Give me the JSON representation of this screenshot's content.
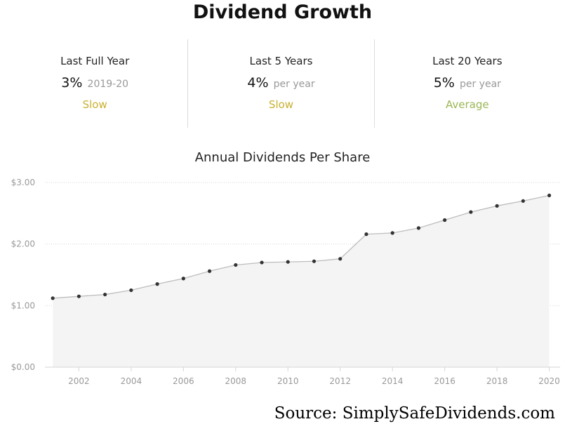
{
  "header": {
    "title": "Dividend Growth"
  },
  "metrics": [
    {
      "label": "Last Full Year",
      "value": "3%",
      "sub": "2019-20",
      "rating": "Slow"
    },
    {
      "label": "Last 5 Years",
      "value": "4%",
      "sub": "per year",
      "rating": "Slow"
    },
    {
      "label": "Last 20 Years",
      "value": "5%",
      "sub": "per year",
      "rating": "Average"
    }
  ],
  "colors": {
    "rating_slow": "#c9b031",
    "rating_average": "#9cb656",
    "line": "#bdbdbd",
    "area": "#f4f4f4",
    "point": "#333333",
    "grid": "#d6d6d6",
    "tick_label": "#999999"
  },
  "chart_data": {
    "type": "area",
    "title": "Annual Dividends Per Share",
    "xlabel": "",
    "ylabel": "",
    "x": [
      2001,
      2002,
      2003,
      2004,
      2005,
      2006,
      2007,
      2008,
      2009,
      2010,
      2011,
      2012,
      2013,
      2014,
      2015,
      2016,
      2017,
      2018,
      2019,
      2020
    ],
    "values": [
      1.12,
      1.15,
      1.18,
      1.25,
      1.35,
      1.44,
      1.56,
      1.66,
      1.7,
      1.71,
      1.72,
      1.76,
      2.16,
      2.18,
      2.26,
      2.39,
      2.52,
      2.62,
      2.7,
      2.79
    ],
    "ylim": [
      0,
      3.0
    ],
    "yticks": [
      0,
      1,
      2,
      3
    ],
    "ytick_labels": [
      "$0.00",
      "$1.00",
      "$2.00",
      "$3.00"
    ],
    "xticks": [
      2002,
      2004,
      2006,
      2008,
      2010,
      2012,
      2014,
      2016,
      2018,
      2020
    ],
    "xtick_labels": [
      "2002",
      "2004",
      "2006",
      "2008",
      "2010",
      "2012",
      "2014",
      "2016",
      "2018",
      "2020"
    ],
    "grid": true,
    "legend": "none"
  },
  "footer": {
    "source": "Source: SimplySafeDividends.com"
  }
}
